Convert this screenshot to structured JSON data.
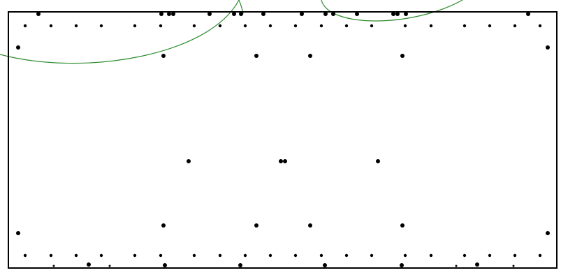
{
  "colors": {
    "background": "#ffffff",
    "outline": "#000000",
    "dots": "#000000",
    "curves": "#2e8b2e"
  },
  "diagram": {
    "has_text": false,
    "elements": [
      "rectangular-outline",
      "dot-markers",
      "green-arc-curves"
    ]
  }
}
